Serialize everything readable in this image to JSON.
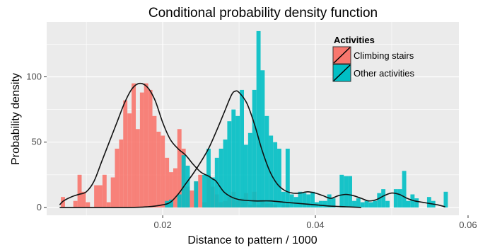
{
  "chart_data": {
    "type": "histogram",
    "title": "Conditional probability density function",
    "xlabel": "Distance to pattern / 1000",
    "ylabel": "Probability density",
    "xlim": [
      0.0048,
      0.0588
    ],
    "ylim": [
      -6,
      142
    ],
    "x_ticks": [
      {
        "value": 0.02,
        "label": "0.02"
      },
      {
        "value": 0.04,
        "label": "0.04"
      },
      {
        "value": 0.06,
        "label": "0.06"
      }
    ],
    "y_ticks": [
      {
        "value": 0,
        "label": "0"
      },
      {
        "value": 50,
        "label": "50"
      },
      {
        "value": 100,
        "label": "100"
      }
    ],
    "grid": true,
    "bin_width": 0.000545,
    "legend": {
      "title": "Activities",
      "position": "top-right",
      "entries": [
        {
          "label": "Climbing stairs",
          "color": "#F8766D"
        },
        {
          "label": "Other activities",
          "color": "#00BFC4"
        }
      ]
    },
    "series": [
      {
        "name": "Climbing stairs",
        "color": "#F8766D",
        "bins": [
          [
            0.00693,
            8
          ],
          [
            0.00856,
            5
          ],
          [
            0.00911,
            25
          ],
          [
            0.00965,
            12
          ],
          [
            0.0102,
            4
          ],
          [
            0.01129,
            17
          ],
          [
            0.01183,
            17
          ],
          [
            0.01238,
            25
          ],
          [
            0.01292,
            4
          ],
          [
            0.01347,
            23
          ],
          [
            0.01401,
            45
          ],
          [
            0.01456,
            52
          ],
          [
            0.0151,
            82
          ],
          [
            0.01565,
            72
          ],
          [
            0.0162,
            95
          ],
          [
            0.01674,
            60
          ],
          [
            0.01729,
            88
          ],
          [
            0.01783,
            95
          ],
          [
            0.01838,
            90
          ],
          [
            0.01892,
            70
          ],
          [
            0.01947,
            58
          ],
          [
            0.02001,
            55
          ],
          [
            0.02056,
            38
          ],
          [
            0.0211,
            27
          ],
          [
            0.02165,
            30
          ],
          [
            0.02219,
            60
          ],
          [
            0.02274,
            45
          ],
          [
            0.02328,
            16
          ],
          [
            0.02383,
            13
          ],
          [
            0.02437,
            20
          ],
          [
            0.02492,
            25
          ],
          [
            0.02546,
            4
          ],
          [
            0.02601,
            25
          ],
          [
            0.02655,
            16
          ],
          [
            0.0271,
            10
          ],
          [
            0.02764,
            4
          ],
          [
            0.02819,
            5
          ],
          [
            0.02873,
            8
          ],
          [
            0.02928,
            12
          ],
          [
            0.02982,
            5
          ],
          [
            0.03037,
            7
          ],
          [
            0.03091,
            11
          ],
          [
            0.03146,
            2
          ],
          [
            0.032,
            12
          ],
          [
            0.03255,
            2
          ],
          [
            0.03309,
            5
          ],
          [
            0.03364,
            3
          ],
          [
            0.03418,
            3
          ],
          [
            0.03473,
            2
          ],
          [
            0.03582,
            2
          ],
          [
            0.03637,
            2
          ]
        ],
        "density_curve": [
          [
            0.0065,
            2
          ],
          [
            0.007,
            5
          ],
          [
            0.008,
            8
          ],
          [
            0.009,
            10
          ],
          [
            0.01,
            12
          ],
          [
            0.011,
            20
          ],
          [
            0.012,
            35
          ],
          [
            0.013,
            50
          ],
          [
            0.014,
            65
          ],
          [
            0.015,
            80
          ],
          [
            0.016,
            91
          ],
          [
            0.017,
            95
          ],
          [
            0.018,
            92
          ],
          [
            0.019,
            82
          ],
          [
            0.02,
            65
          ],
          [
            0.021,
            52
          ],
          [
            0.022,
            45
          ],
          [
            0.023,
            40
          ],
          [
            0.024,
            33
          ],
          [
            0.025,
            27
          ],
          [
            0.026,
            24
          ],
          [
            0.0265,
            22
          ],
          [
            0.027,
            20
          ],
          [
            0.028,
            12
          ],
          [
            0.029,
            8
          ],
          [
            0.03,
            6
          ],
          [
            0.032,
            5
          ],
          [
            0.034,
            5
          ],
          [
            0.036,
            4
          ],
          [
            0.038,
            3
          ],
          [
            0.04,
            2
          ],
          [
            0.042,
            1
          ],
          [
            0.044,
            0.5
          ],
          [
            0.046,
            0
          ]
        ]
      },
      {
        "name": "Other activities",
        "color": "#00BFC4",
        "bins": [
          [
            0.02056,
            5
          ],
          [
            0.0211,
            6
          ],
          [
            0.02219,
            10
          ],
          [
            0.02274,
            40
          ],
          [
            0.02328,
            32
          ],
          [
            0.02437,
            20
          ],
          [
            0.02546,
            25
          ],
          [
            0.02601,
            45
          ],
          [
            0.02655,
            23
          ],
          [
            0.0271,
            38
          ],
          [
            0.02764,
            45
          ],
          [
            0.02819,
            52
          ],
          [
            0.02873,
            66
          ],
          [
            0.02928,
            75
          ],
          [
            0.02982,
            70
          ],
          [
            0.03037,
            90
          ],
          [
            0.03091,
            48
          ],
          [
            0.03146,
            57
          ],
          [
            0.032,
            90
          ],
          [
            0.03255,
            135
          ],
          [
            0.03309,
            105
          ],
          [
            0.03364,
            70
          ],
          [
            0.03418,
            55
          ],
          [
            0.03473,
            50
          ],
          [
            0.03527,
            45
          ],
          [
            0.03582,
            12
          ],
          [
            0.03637,
            45
          ],
          [
            0.03691,
            10
          ],
          [
            0.03746,
            8
          ],
          [
            0.038,
            12
          ],
          [
            0.03855,
            11
          ],
          [
            0.03909,
            10
          ],
          [
            0.03964,
            12
          ],
          [
            0.04018,
            4
          ],
          [
            0.04073,
            5
          ],
          [
            0.04127,
            5
          ],
          [
            0.04182,
            10
          ],
          [
            0.04236,
            7
          ],
          [
            0.04345,
            25
          ],
          [
            0.044,
            24
          ],
          [
            0.04454,
            24
          ],
          [
            0.04509,
            5
          ],
          [
            0.04563,
            7
          ],
          [
            0.04618,
            4
          ],
          [
            0.04672,
            5
          ],
          [
            0.04727,
            4
          ],
          [
            0.04781,
            5
          ],
          [
            0.04836,
            11
          ],
          [
            0.0489,
            14
          ],
          [
            0.04945,
            5
          ],
          [
            0.05054,
            14
          ],
          [
            0.05108,
            14
          ],
          [
            0.05163,
            28
          ],
          [
            0.05217,
            5
          ],
          [
            0.05272,
            10
          ],
          [
            0.05326,
            7
          ],
          [
            0.0549,
            8
          ],
          [
            0.05544,
            5
          ],
          [
            0.05708,
            12
          ]
        ],
        "density_curve": [
          [
            0.0065,
            0
          ],
          [
            0.015,
            0
          ],
          [
            0.018,
            0.5
          ],
          [
            0.02,
            2
          ],
          [
            0.021,
            4
          ],
          [
            0.022,
            10
          ],
          [
            0.023,
            18
          ],
          [
            0.024,
            26
          ],
          [
            0.025,
            35
          ],
          [
            0.026,
            45
          ],
          [
            0.027,
            58
          ],
          [
            0.028,
            72
          ],
          [
            0.029,
            86
          ],
          [
            0.0295,
            89
          ],
          [
            0.03,
            88
          ],
          [
            0.031,
            80
          ],
          [
            0.032,
            64
          ],
          [
            0.033,
            44
          ],
          [
            0.034,
            28
          ],
          [
            0.035,
            18
          ],
          [
            0.036,
            13
          ],
          [
            0.037,
            11
          ],
          [
            0.038,
            11
          ],
          [
            0.039,
            12
          ],
          [
            0.04,
            11
          ],
          [
            0.041,
            9
          ],
          [
            0.042,
            7
          ],
          [
            0.043,
            9
          ],
          [
            0.044,
            10
          ],
          [
            0.045,
            9
          ],
          [
            0.046,
            7
          ],
          [
            0.047,
            5
          ],
          [
            0.048,
            6
          ],
          [
            0.049,
            9
          ],
          [
            0.05,
            11
          ],
          [
            0.051,
            10
          ],
          [
            0.052,
            7
          ],
          [
            0.053,
            5
          ],
          [
            0.054,
            4
          ],
          [
            0.055,
            3
          ],
          [
            0.056,
            2
          ],
          [
            0.057,
            0.5
          ]
        ]
      }
    ]
  }
}
